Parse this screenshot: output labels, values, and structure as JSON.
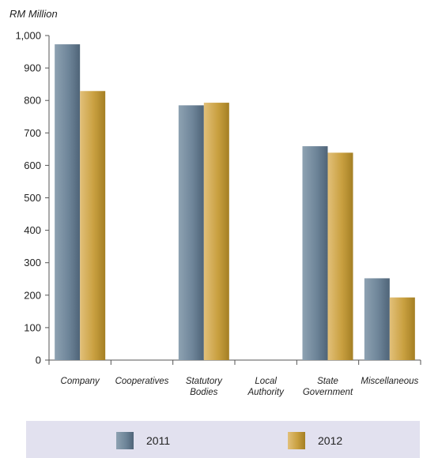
{
  "chart_data": {
    "type": "bar",
    "y_unit_label": "RM Million",
    "categories": [
      [
        "Company"
      ],
      [
        "Cooperatives"
      ],
      [
        "Statutory",
        "Bodies"
      ],
      [
        "Local",
        "Authority"
      ],
      [
        "State",
        "Government"
      ],
      [
        "Miscellaneous"
      ]
    ],
    "series": [
      {
        "name": "2011",
        "color": "#6a8296",
        "values": [
          973,
          0,
          785,
          0,
          659,
          252
        ]
      },
      {
        "name": "2012",
        "color": "#c9a040",
        "values": [
          829,
          0,
          793,
          0,
          639,
          193
        ]
      }
    ],
    "yticks": [
      "0",
      "100",
      "200",
      "300",
      "400",
      "500",
      "600",
      "700",
      "800",
      "900",
      "1,000"
    ],
    "ylim": [
      0,
      1000
    ],
    "grid": false,
    "legend_position": "bottom"
  }
}
